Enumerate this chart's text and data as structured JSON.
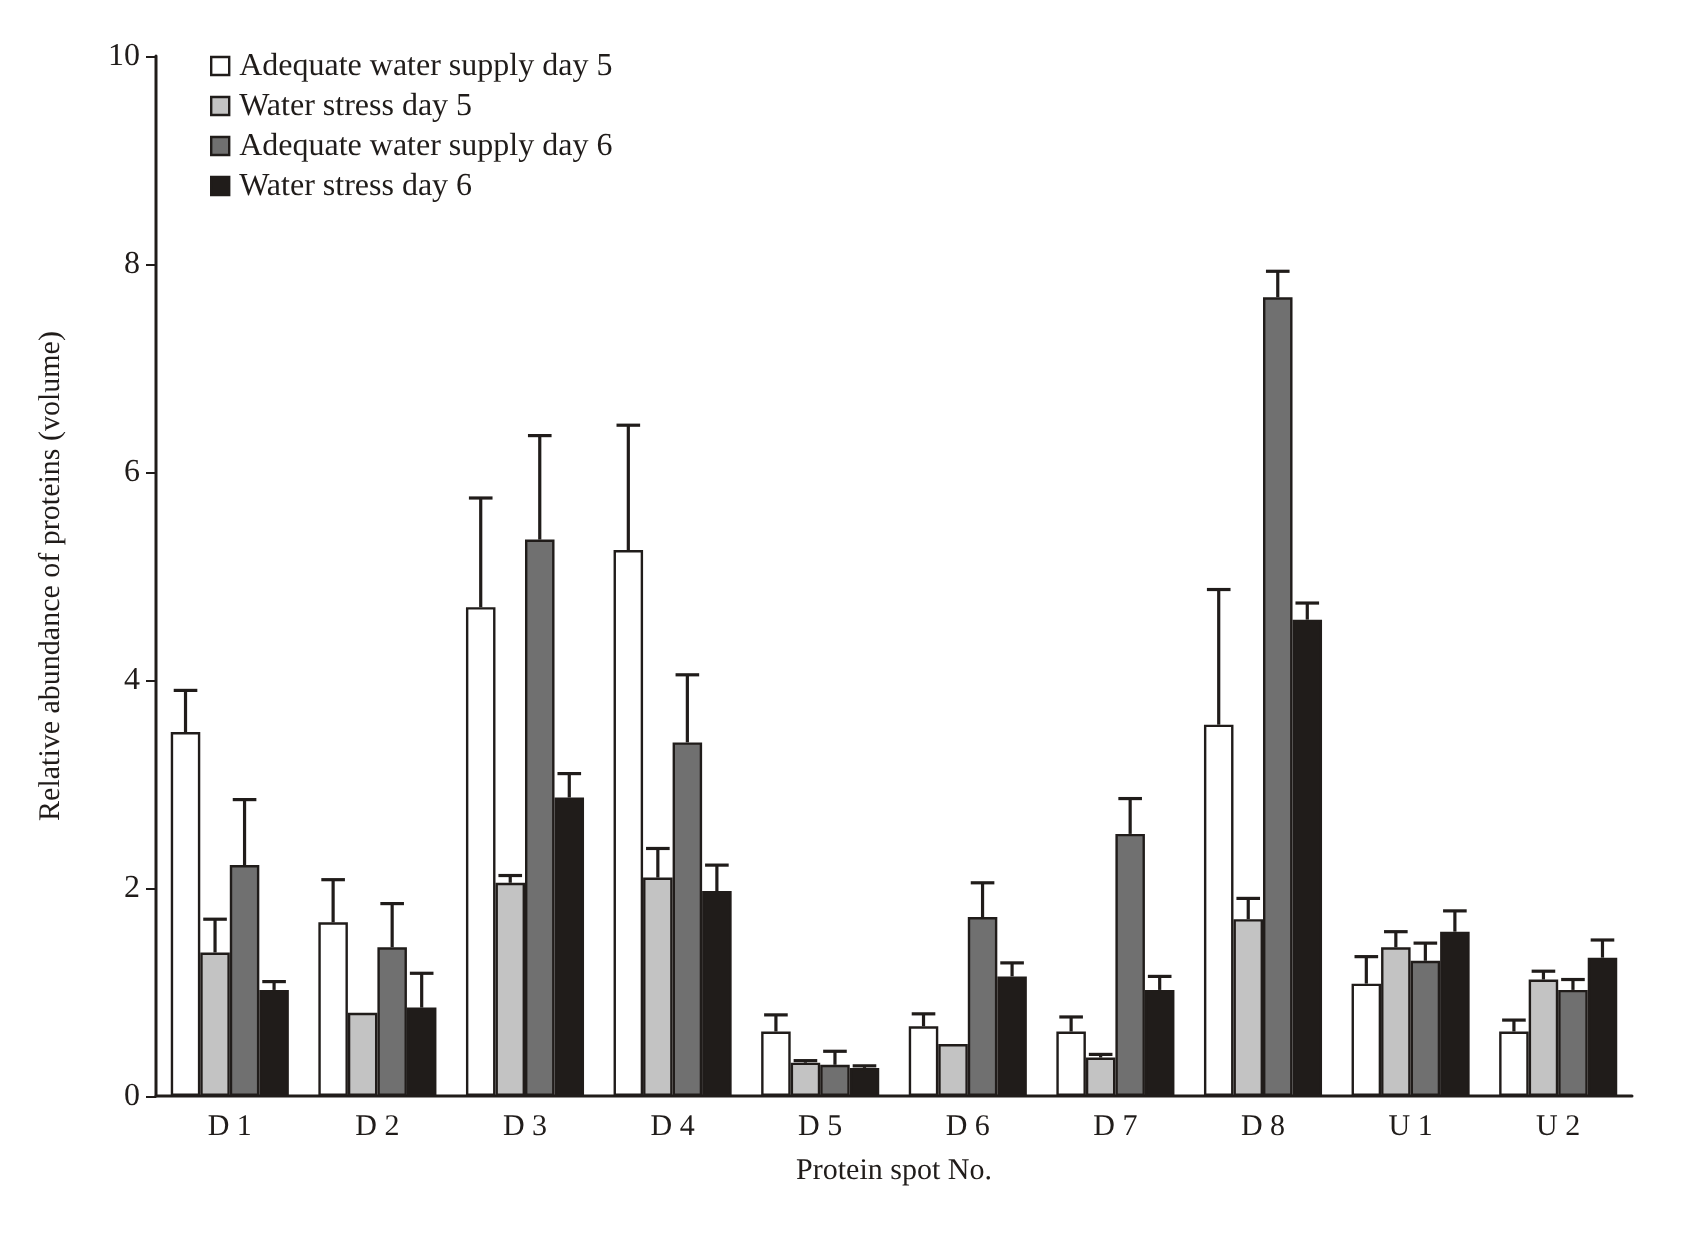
{
  "chart_data": {
    "type": "bar",
    "xlabel": "Protein spot No.",
    "ylabel": "Relative abundance of proteins (volume)",
    "categories": [
      "D 1",
      "D 2",
      "D 3",
      "D 4",
      "D 5",
      "D 6",
      "D 7",
      "D 8",
      "U 1",
      "U 2"
    ],
    "ylim": [
      0,
      10
    ],
    "yticks": [
      0,
      2,
      4,
      6,
      8,
      10
    ],
    "grid": false,
    "legend": "top left",
    "series": [
      {
        "name": "Adequate water supply day 5",
        "color": "#ffffff",
        "values": [
          3.5,
          1.67,
          4.7,
          5.25,
          0.62,
          0.67,
          0.62,
          3.57,
          1.08,
          0.62
        ],
        "errors": [
          [
            3.5,
            3.9
          ],
          [
            1.67,
            2.08
          ],
          [
            4.7,
            5.75
          ],
          [
            5.25,
            6.45
          ],
          [
            0.62,
            0.78
          ],
          [
            0.67,
            0.79
          ],
          [
            0.62,
            0.76
          ],
          [
            3.57,
            4.87
          ],
          [
            1.08,
            1.34
          ],
          [
            0.62,
            0.73
          ]
        ]
      },
      {
        "name": "Water stress day 5",
        "color": "#c3c3c3",
        "values": [
          1.38,
          0.8,
          2.05,
          2.1,
          0.32,
          0.5,
          0.37,
          1.7,
          1.43,
          1.12
        ],
        "errors": [
          [
            1.38,
            1.7
          ],
          null,
          [
            2.05,
            2.12
          ],
          [
            2.1,
            2.38
          ],
          [
            0.32,
            0.34
          ],
          null,
          [
            0.37,
            0.4
          ],
          [
            1.7,
            1.9
          ],
          [
            1.43,
            1.58
          ],
          [
            1.12,
            1.2
          ]
        ]
      },
      {
        "name": "Adequate water supply day 6",
        "color": "#707070",
        "values": [
          2.22,
          1.43,
          5.35,
          3.4,
          0.3,
          1.72,
          2.52,
          7.68,
          1.3,
          1.02
        ],
        "errors": [
          [
            2.22,
            2.85
          ],
          [
            1.43,
            1.85
          ],
          [
            5.35,
            6.35
          ],
          [
            3.4,
            4.05
          ],
          [
            0.3,
            0.43
          ],
          [
            1.72,
            2.05
          ],
          [
            2.52,
            2.86
          ],
          [
            7.68,
            7.93
          ],
          [
            1.3,
            1.47
          ],
          [
            1.02,
            1.12
          ]
        ]
      },
      {
        "name": "Water stress day 6",
        "color": "#201c1a",
        "values": [
          1.02,
          0.85,
          2.87,
          1.97,
          0.27,
          1.15,
          1.02,
          4.58,
          1.58,
          1.33
        ],
        "errors": [
          [
            1.02,
            1.1
          ],
          [
            0.85,
            1.18
          ],
          [
            2.87,
            3.1
          ],
          [
            1.97,
            2.22
          ],
          [
            0.27,
            0.29
          ],
          [
            1.15,
            1.28
          ],
          [
            1.02,
            1.15
          ],
          [
            4.58,
            4.74
          ],
          [
            1.58,
            1.78
          ],
          [
            1.33,
            1.5
          ]
        ]
      }
    ]
  }
}
